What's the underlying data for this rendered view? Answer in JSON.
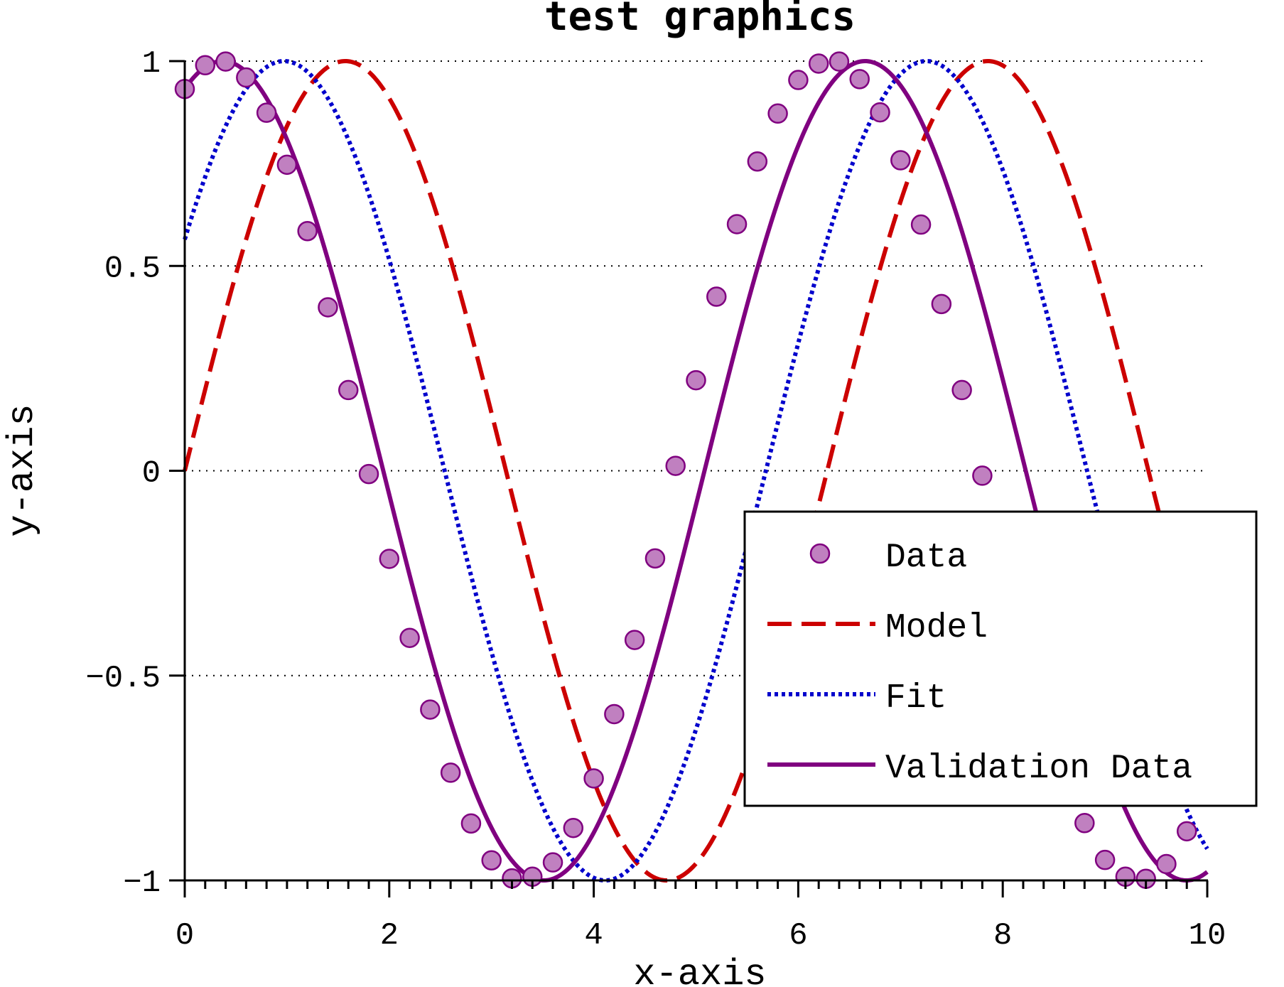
{
  "chart_data": {
    "type": "line",
    "title": "test graphics",
    "xlabel": "x-axis",
    "ylabel": "y-axis",
    "xlim": [
      0,
      10
    ],
    "ylim": [
      -1,
      1
    ],
    "xticks": [
      0,
      2,
      4,
      6,
      8,
      10
    ],
    "xtick_labels": [
      "0",
      "2",
      "4",
      "6",
      "8",
      "10"
    ],
    "yticks": [
      -1,
      -0.5,
      0,
      0.5,
      1
    ],
    "ytick_labels": [
      "−1",
      "−0.5",
      "0",
      "0.5",
      "1"
    ],
    "grid": "horizontal dotted",
    "legend_position": "lower-right",
    "series": [
      {
        "name": "Data",
        "style": "markers",
        "color": "#c080c0",
        "edge_color": "#800080",
        "x": [
          0.0,
          0.2,
          0.4,
          0.6,
          0.8,
          1.0,
          1.2,
          1.4,
          1.6,
          1.8,
          2.0,
          2.2,
          2.4,
          2.6,
          2.8,
          3.0,
          3.2,
          3.4,
          3.6,
          3.8,
          4.0,
          4.2,
          4.4,
          4.6,
          4.8,
          5.0,
          5.2,
          5.4,
          5.6,
          5.8,
          6.0,
          6.2,
          6.4,
          6.6,
          6.8,
          7.0,
          7.2,
          7.4,
          7.6,
          7.8,
          8.0,
          8.2,
          8.4,
          8.6,
          8.8,
          9.0,
          9.2,
          9.4,
          9.6,
          9.8,
          10.0
        ],
        "y": [
          0.932,
          0.99,
          0.999,
          0.96,
          0.874,
          0.747,
          0.585,
          0.399,
          0.197,
          -0.008,
          -0.215,
          -0.408,
          -0.583,
          -0.737,
          -0.861,
          -0.951,
          -0.995,
          -0.991,
          -0.956,
          -0.872,
          -0.751,
          -0.594,
          -0.413,
          -0.214,
          0.012,
          0.221,
          0.425,
          0.602,
          0.755,
          0.872,
          0.954,
          0.994,
          0.999,
          0.956,
          0.875,
          0.758,
          0.601,
          0.407,
          0.197,
          -0.012,
          -0.219,
          -0.416,
          -0.59,
          -0.74,
          -0.86,
          -0.95,
          -0.991,
          -0.996,
          -0.96,
          -0.88,
          -0.759
        ]
      },
      {
        "name": "Model",
        "style": "dashed",
        "color": "#cc0000",
        "function": "sin(x)",
        "x_range": [
          0,
          10
        ]
      },
      {
        "name": "Fit",
        "style": "dotted",
        "color": "#0000cc",
        "function": "sin(x + 0.6)",
        "x_range": [
          0,
          10
        ]
      },
      {
        "name": "Validation Data",
        "style": "solid",
        "color": "#800080",
        "function": "sin(x + 1.2)",
        "x_range": [
          0,
          10
        ]
      }
    ]
  }
}
